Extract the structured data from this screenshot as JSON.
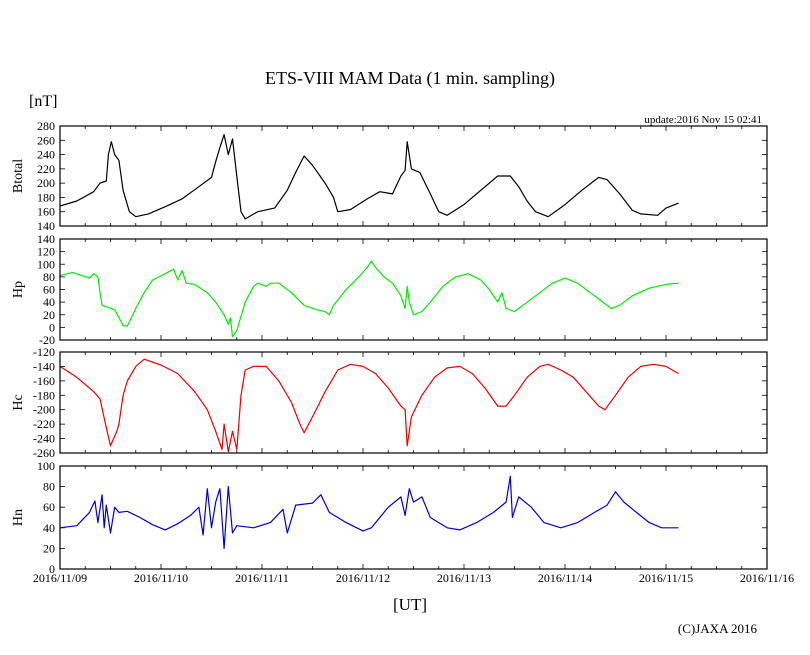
{
  "chart_data": {
    "type": "line",
    "title": "ETS-VIII MAM Data (1 min. sampling)",
    "ylabel_unit": "[nT]",
    "xlabel": "[UT]",
    "update_text": "update:2016 Nov 15 02:41",
    "copyright": "(C)JAXA 2016",
    "x_unit": "hours since 2016/11/09 00:00 UT",
    "xlim": [
      0,
      168
    ],
    "x_tick_labels": [
      "2016/11/09",
      "2016/11/10",
      "2016/11/11",
      "2016/11/12",
      "2016/11/13",
      "2016/11/14",
      "2016/11/15",
      "2016/11/16"
    ],
    "grid": false,
    "panels": [
      {
        "name": "Btotal",
        "color": "#000000",
        "ylim": [
          140,
          280
        ],
        "y_tick_labels": [
          "280",
          "260",
          "240",
          "220",
          "200",
          "180",
          "160",
          "140"
        ],
        "points": [
          [
            0,
            168
          ],
          [
            4,
            175
          ],
          [
            8,
            188
          ],
          [
            9.5,
            200
          ],
          [
            11,
            203
          ],
          [
            11.5,
            240
          ],
          [
            12.2,
            258
          ],
          [
            13,
            240
          ],
          [
            14,
            232
          ],
          [
            15,
            190
          ],
          [
            16.5,
            160
          ],
          [
            18,
            153
          ],
          [
            21,
            157
          ],
          [
            25,
            167
          ],
          [
            29,
            178
          ],
          [
            33,
            195
          ],
          [
            36,
            208
          ],
          [
            37,
            230
          ],
          [
            38,
            250
          ],
          [
            39,
            268
          ],
          [
            40,
            240
          ],
          [
            41,
            262
          ],
          [
            42,
            210
          ],
          [
            43,
            160
          ],
          [
            44,
            150
          ],
          [
            47,
            160
          ],
          [
            51,
            165
          ],
          [
            54,
            190
          ],
          [
            56,
            215
          ],
          [
            58,
            238
          ],
          [
            60,
            225
          ],
          [
            63,
            200
          ],
          [
            65,
            180
          ],
          [
            66,
            160
          ],
          [
            69,
            163
          ],
          [
            73,
            178
          ],
          [
            76,
            188
          ],
          [
            79,
            185
          ],
          [
            81,
            210
          ],
          [
            82,
            218
          ],
          [
            82.5,
            258
          ],
          [
            83.5,
            220
          ],
          [
            85.5,
            215
          ],
          [
            88,
            185
          ],
          [
            90,
            160
          ],
          [
            92,
            155
          ],
          [
            96,
            170
          ],
          [
            100,
            190
          ],
          [
            104,
            210
          ],
          [
            107,
            210
          ],
          [
            109,
            195
          ],
          [
            111,
            175
          ],
          [
            113,
            160
          ],
          [
            116,
            153
          ],
          [
            120,
            170
          ],
          [
            124,
            190
          ],
          [
            128,
            208
          ],
          [
            130,
            205
          ],
          [
            133,
            185
          ],
          [
            136,
            162
          ],
          [
            138,
            157
          ],
          [
            142,
            155
          ],
          [
            144,
            165
          ],
          [
            147,
            172
          ]
        ]
      },
      {
        "name": "Hp",
        "color": "#00ee00",
        "ylim": [
          -20,
          140
        ],
        "y_tick_labels": [
          "140",
          "120",
          "100",
          "80",
          "60",
          "40",
          "20",
          "0",
          "-20"
        ],
        "points": [
          [
            0,
            82
          ],
          [
            3,
            87
          ],
          [
            7,
            78
          ],
          [
            8,
            85
          ],
          [
            9,
            80
          ],
          [
            9.5,
            55
          ],
          [
            10,
            35
          ],
          [
            13,
            28
          ],
          [
            15,
            3
          ],
          [
            16,
            2
          ],
          [
            18,
            30
          ],
          [
            20,
            55
          ],
          [
            22,
            75
          ],
          [
            25,
            85
          ],
          [
            27,
            92
          ],
          [
            28,
            75
          ],
          [
            29,
            90
          ],
          [
            30,
            70
          ],
          [
            32,
            68
          ],
          [
            35,
            55
          ],
          [
            37,
            40
          ],
          [
            39,
            20
          ],
          [
            40,
            5
          ],
          [
            40.5,
            15
          ],
          [
            41,
            -15
          ],
          [
            42,
            -5
          ],
          [
            44,
            40
          ],
          [
            46,
            65
          ],
          [
            47,
            70
          ],
          [
            49,
            65
          ],
          [
            50,
            70
          ],
          [
            52,
            70
          ],
          [
            55,
            55
          ],
          [
            58,
            35
          ],
          [
            61,
            28
          ],
          [
            63,
            25
          ],
          [
            64,
            20
          ],
          [
            65,
            35
          ],
          [
            68,
            60
          ],
          [
            71,
            80
          ],
          [
            73,
            95
          ],
          [
            74,
            105
          ],
          [
            75,
            95
          ],
          [
            77,
            80
          ],
          [
            79,
            70
          ],
          [
            81,
            50
          ],
          [
            82,
            30
          ],
          [
            82.5,
            65
          ],
          [
            83,
            40
          ],
          [
            84,
            20
          ],
          [
            86,
            25
          ],
          [
            88,
            40
          ],
          [
            91,
            65
          ],
          [
            94,
            80
          ],
          [
            97,
            85
          ],
          [
            100,
            75
          ],
          [
            102,
            60
          ],
          [
            104,
            40
          ],
          [
            105,
            55
          ],
          [
            106,
            30
          ],
          [
            108,
            25
          ],
          [
            110,
            35
          ],
          [
            114,
            55
          ],
          [
            117,
            70
          ],
          [
            120,
            78
          ],
          [
            123,
            70
          ],
          [
            126,
            55
          ],
          [
            129,
            40
          ],
          [
            131,
            30
          ],
          [
            133,
            35
          ],
          [
            136,
            50
          ],
          [
            140,
            62
          ],
          [
            144,
            68
          ],
          [
            147,
            70
          ]
        ]
      },
      {
        "name": "Hc",
        "color": "#ee0000",
        "ylim": [
          -260,
          -120
        ],
        "y_tick_labels": [
          "-120",
          "-140",
          "-160",
          "-180",
          "-200",
          "-220",
          "-240",
          "-260"
        ],
        "points": [
          [
            0,
            -140
          ],
          [
            4,
            -155
          ],
          [
            8,
            -175
          ],
          [
            9.5,
            -185
          ],
          [
            11,
            -225
          ],
          [
            12,
            -250
          ],
          [
            13.5,
            -230
          ],
          [
            14,
            -220
          ],
          [
            15,
            -180
          ],
          [
            16,
            -160
          ],
          [
            18,
            -140
          ],
          [
            20,
            -130
          ],
          [
            24,
            -138
          ],
          [
            28,
            -150
          ],
          [
            32,
            -175
          ],
          [
            35,
            -200
          ],
          [
            37,
            -230
          ],
          [
            38.5,
            -255
          ],
          [
            39,
            -220
          ],
          [
            40,
            -258
          ],
          [
            41,
            -230
          ],
          [
            42,
            -255
          ],
          [
            43,
            -180
          ],
          [
            44,
            -145
          ],
          [
            46,
            -140
          ],
          [
            49,
            -140
          ],
          [
            52,
            -160
          ],
          [
            55,
            -190
          ],
          [
            57,
            -220
          ],
          [
            58,
            -232
          ],
          [
            60,
            -210
          ],
          [
            63,
            -175
          ],
          [
            66,
            -145
          ],
          [
            69,
            -137
          ],
          [
            72,
            -140
          ],
          [
            75,
            -150
          ],
          [
            78,
            -170
          ],
          [
            81,
            -195
          ],
          [
            82,
            -200
          ],
          [
            82.5,
            -250
          ],
          [
            83.5,
            -210
          ],
          [
            86,
            -180
          ],
          [
            89,
            -155
          ],
          [
            92,
            -142
          ],
          [
            95,
            -140
          ],
          [
            98,
            -150
          ],
          [
            101,
            -170
          ],
          [
            104,
            -195
          ],
          [
            106,
            -195
          ],
          [
            108,
            -180
          ],
          [
            111,
            -155
          ],
          [
            114,
            -140
          ],
          [
            116,
            -137
          ],
          [
            119,
            -145
          ],
          [
            122,
            -155
          ],
          [
            125,
            -175
          ],
          [
            128,
            -195
          ],
          [
            129.5,
            -200
          ],
          [
            132,
            -180
          ],
          [
            135,
            -155
          ],
          [
            138,
            -140
          ],
          [
            141,
            -137
          ],
          [
            144,
            -140
          ],
          [
            147,
            -150
          ]
        ]
      },
      {
        "name": "Hn",
        "color": "#0000dd",
        "ylim": [
          0,
          100
        ],
        "y_tick_labels": [
          "100",
          "80",
          "60",
          "40",
          "20",
          "0"
        ],
        "points": [
          [
            0,
            40
          ],
          [
            4,
            42
          ],
          [
            7,
            55
          ],
          [
            8.3,
            66
          ],
          [
            9,
            45
          ],
          [
            10,
            72
          ],
          [
            10.5,
            40
          ],
          [
            11,
            62
          ],
          [
            12,
            35
          ],
          [
            13,
            60
          ],
          [
            14,
            55
          ],
          [
            16,
            56
          ],
          [
            19,
            50
          ],
          [
            22,
            43
          ],
          [
            25,
            38
          ],
          [
            28,
            44
          ],
          [
            31,
            52
          ],
          [
            33,
            60
          ],
          [
            34,
            33
          ],
          [
            35,
            78
          ],
          [
            36,
            40
          ],
          [
            37,
            65
          ],
          [
            38,
            78
          ],
          [
            39,
            20
          ],
          [
            40,
            80
          ],
          [
            41,
            35
          ],
          [
            42,
            42
          ],
          [
            46,
            40
          ],
          [
            50,
            45
          ],
          [
            53,
            58
          ],
          [
            54,
            35
          ],
          [
            56,
            62
          ],
          [
            60,
            64
          ],
          [
            62,
            72
          ],
          [
            64,
            55
          ],
          [
            68,
            45
          ],
          [
            72,
            37
          ],
          [
            74,
            40
          ],
          [
            78,
            60
          ],
          [
            81,
            70
          ],
          [
            82,
            52
          ],
          [
            83,
            78
          ],
          [
            84,
            65
          ],
          [
            86,
            70
          ],
          [
            88,
            50
          ],
          [
            92,
            40
          ],
          [
            95,
            38
          ],
          [
            99,
            45
          ],
          [
            103,
            55
          ],
          [
            106,
            65
          ],
          [
            107,
            90
          ],
          [
            107.5,
            50
          ],
          [
            109,
            70
          ],
          [
            112,
            60
          ],
          [
            115,
            45
          ],
          [
            119,
            40
          ],
          [
            123,
            45
          ],
          [
            127,
            55
          ],
          [
            130,
            62
          ],
          [
            132,
            75
          ],
          [
            134,
            65
          ],
          [
            137,
            55
          ],
          [
            140,
            45
          ],
          [
            143,
            40
          ],
          [
            147,
            40
          ]
        ]
      }
    ]
  }
}
